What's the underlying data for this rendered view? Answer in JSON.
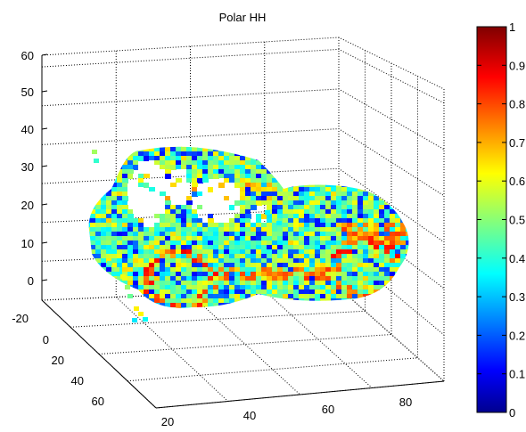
{
  "chart_data": {
    "type": "scatter",
    "title": "Polar HH",
    "xlabel": "",
    "ylabel": "",
    "zlabel": "",
    "x_ticks": [
      "20",
      "40",
      "60",
      "80"
    ],
    "y_ticks": [
      "-20",
      "0",
      "20",
      "40",
      "60"
    ],
    "z_ticks": [
      "0",
      "10",
      "20",
      "30",
      "40",
      "50",
      "60"
    ],
    "colorbar_ticks": [
      "0",
      "0.1",
      "0.2",
      "0.3",
      "0.4",
      "0.5",
      "0.6",
      "0.7",
      "0.8",
      "0.9",
      "1"
    ],
    "x_range": [
      15,
      95
    ],
    "y_range": [
      -25,
      70
    ],
    "z_range": [
      -5,
      60
    ],
    "colorbar_range": [
      0,
      1
    ],
    "colormap": "jet",
    "grid": true,
    "box": "3d-dotted",
    "view": "3d perspective, vehicle viewed from front-left"
  }
}
